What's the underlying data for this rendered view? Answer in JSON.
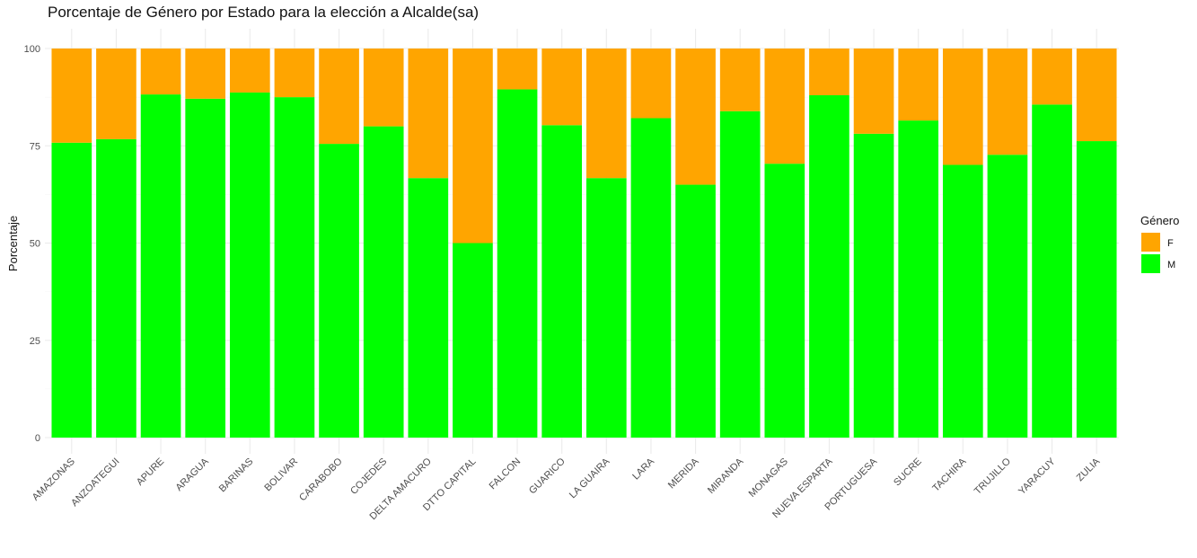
{
  "chart_data": {
    "type": "bar",
    "stacked": true,
    "title": "Porcentaje de Género por Estado para la elección a Alcalde(sa)",
    "xlabel": "",
    "ylabel": "Porcentaje",
    "ylim": [
      0,
      100
    ],
    "y_ticks": [
      0,
      25,
      50,
      75,
      100
    ],
    "grid": true,
    "legend": {
      "title": "Género",
      "position": "right"
    },
    "categories": [
      "AMAZONAS",
      "ANZOATEGUI",
      "APURE",
      "ARAGUA",
      "BARINAS",
      "BOLIVAR",
      "CARABOBO",
      "COJEDES",
      "DELTA AMACURO",
      "DTTO CAPITAL",
      "FALCON",
      "GUARICO",
      "LA GUAIRA",
      "LARA",
      "MERIDA",
      "MIRANDA",
      "MONAGAS",
      "NUEVA ESPARTA",
      "PORTUGUESA",
      "SUCRE",
      "TACHIRA",
      "TRUJILLO",
      "YARACUY",
      "ZULIA"
    ],
    "series": [
      {
        "name": "F",
        "color": "#FFA500",
        "values": [
          24.2,
          23.3,
          11.8,
          12.9,
          11.3,
          12.5,
          24.5,
          20.0,
          33.3,
          50.0,
          10.5,
          19.7,
          33.3,
          17.9,
          35.0,
          16.1,
          29.6,
          12.0,
          21.9,
          18.5,
          29.9,
          27.3,
          14.4,
          23.8
        ]
      },
      {
        "name": "M",
        "color": "#00FF00",
        "values": [
          75.8,
          76.7,
          88.2,
          87.1,
          88.7,
          87.5,
          75.5,
          80.0,
          66.7,
          50.0,
          89.5,
          80.3,
          66.7,
          82.1,
          65.0,
          83.9,
          70.4,
          88.0,
          78.1,
          81.5,
          70.1,
          72.7,
          85.6,
          76.2
        ]
      }
    ]
  }
}
